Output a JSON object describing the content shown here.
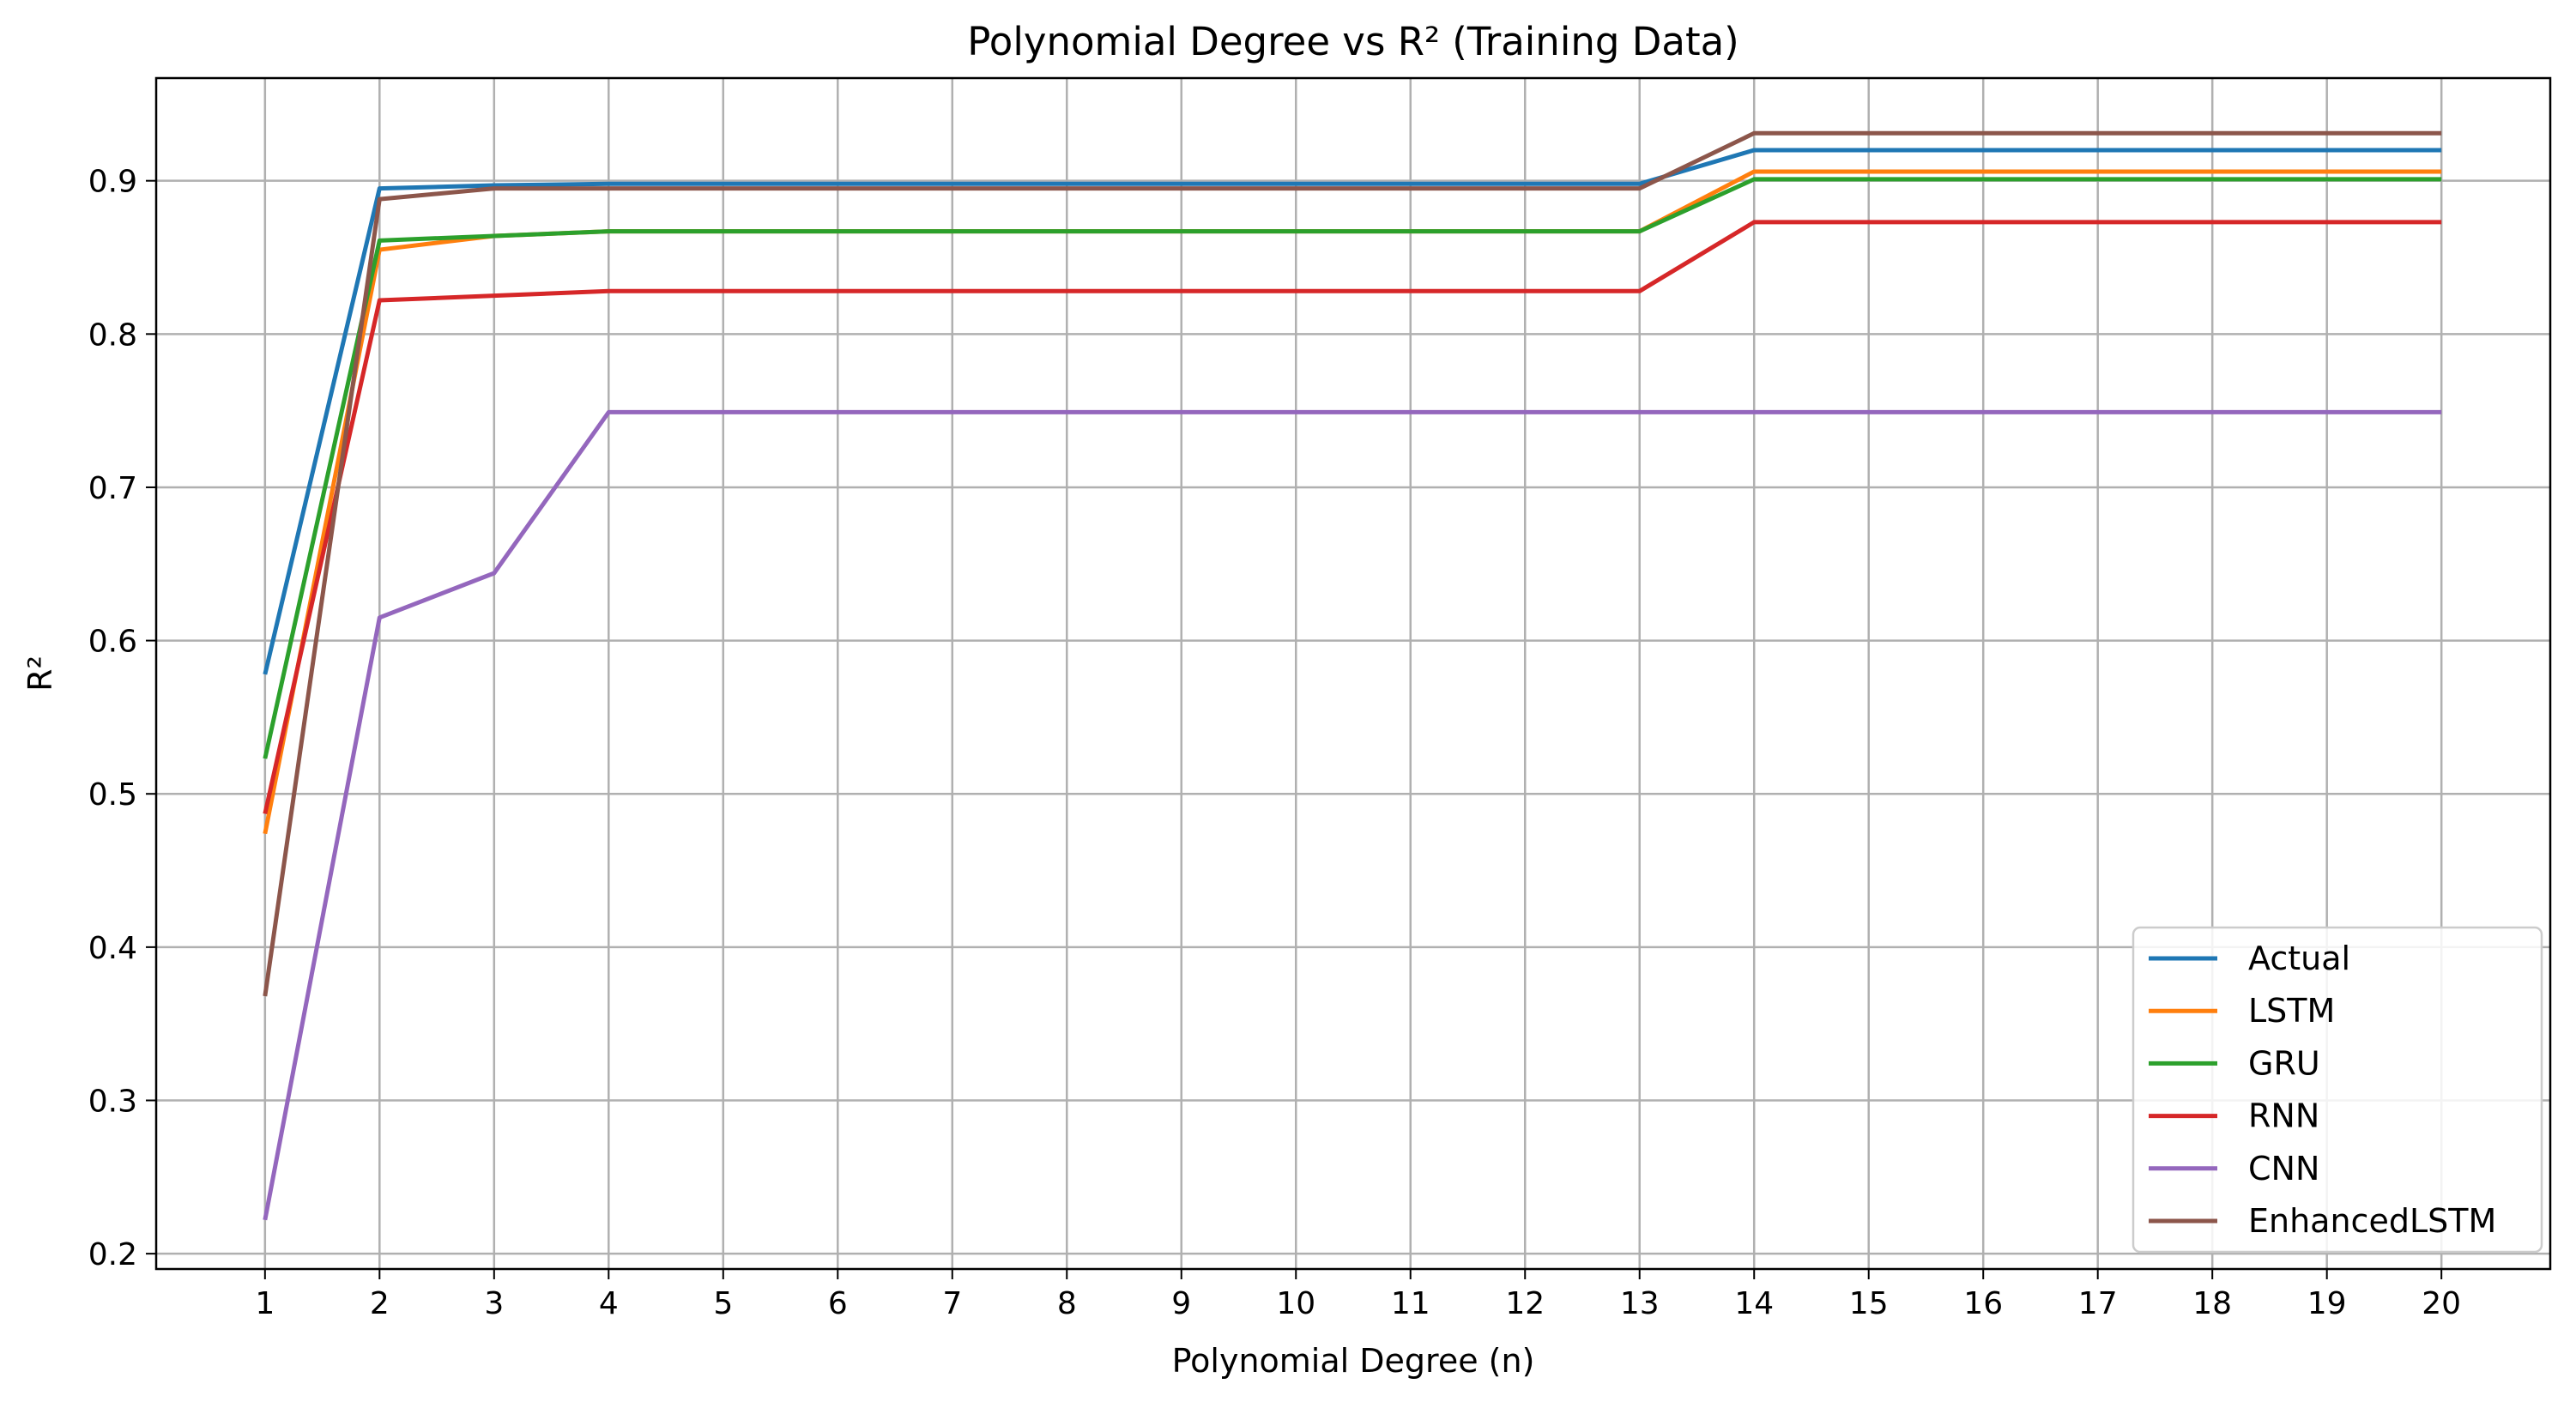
{
  "chart_data": {
    "type": "line",
    "title": "Polynomial Degree vs R² (Training Data)",
    "xlabel": "Polynomial Degree (n)",
    "ylabel": "R²",
    "x": [
      1,
      2,
      3,
      4,
      5,
      6,
      7,
      8,
      9,
      10,
      11,
      12,
      13,
      14,
      15,
      16,
      17,
      18,
      19,
      20
    ],
    "xlim": [
      0.05,
      20.95
    ],
    "ylim": [
      0.19,
      0.967
    ],
    "yticks": [
      0.2,
      0.3,
      0.4,
      0.5,
      0.6,
      0.7,
      0.8,
      0.9
    ],
    "ytick_labels": [
      "0.2",
      "0.3",
      "0.4",
      "0.5",
      "0.6",
      "0.7",
      "0.8",
      "0.9"
    ],
    "grid": true,
    "legend_position": "lower-right",
    "series": [
      {
        "name": "Actual",
        "color": "#1f77b4",
        "values": [
          0.578,
          0.895,
          0.897,
          0.898,
          0.898,
          0.898,
          0.898,
          0.898,
          0.898,
          0.898,
          0.898,
          0.898,
          0.898,
          0.92,
          0.92,
          0.92,
          0.92,
          0.92,
          0.92,
          0.92
        ]
      },
      {
        "name": "LSTM",
        "color": "#ff7f0e",
        "values": [
          0.474,
          0.855,
          0.864,
          0.867,
          0.867,
          0.867,
          0.867,
          0.867,
          0.867,
          0.867,
          0.867,
          0.867,
          0.867,
          0.906,
          0.906,
          0.906,
          0.906,
          0.906,
          0.906,
          0.906
        ]
      },
      {
        "name": "GRU",
        "color": "#2ca02c",
        "values": [
          0.523,
          0.861,
          0.864,
          0.867,
          0.867,
          0.867,
          0.867,
          0.867,
          0.867,
          0.867,
          0.867,
          0.867,
          0.867,
          0.901,
          0.901,
          0.901,
          0.901,
          0.901,
          0.901,
          0.901
        ]
      },
      {
        "name": "RNN",
        "color": "#d62728",
        "values": [
          0.487,
          0.822,
          0.825,
          0.828,
          0.828,
          0.828,
          0.828,
          0.828,
          0.828,
          0.828,
          0.828,
          0.828,
          0.828,
          0.873,
          0.873,
          0.873,
          0.873,
          0.873,
          0.873,
          0.873
        ]
      },
      {
        "name": "CNN",
        "color": "#9467bd",
        "values": [
          0.222,
          0.615,
          0.644,
          0.749,
          0.749,
          0.749,
          0.749,
          0.749,
          0.749,
          0.749,
          0.749,
          0.749,
          0.749,
          0.749,
          0.749,
          0.749,
          0.749,
          0.749,
          0.749,
          0.749
        ]
      },
      {
        "name": "EnhancedLSTM",
        "color": "#8c564b",
        "values": [
          0.368,
          0.888,
          0.895,
          0.895,
          0.895,
          0.895,
          0.895,
          0.895,
          0.895,
          0.895,
          0.895,
          0.895,
          0.895,
          0.931,
          0.931,
          0.931,
          0.931,
          0.931,
          0.931,
          0.931
        ]
      }
    ]
  }
}
